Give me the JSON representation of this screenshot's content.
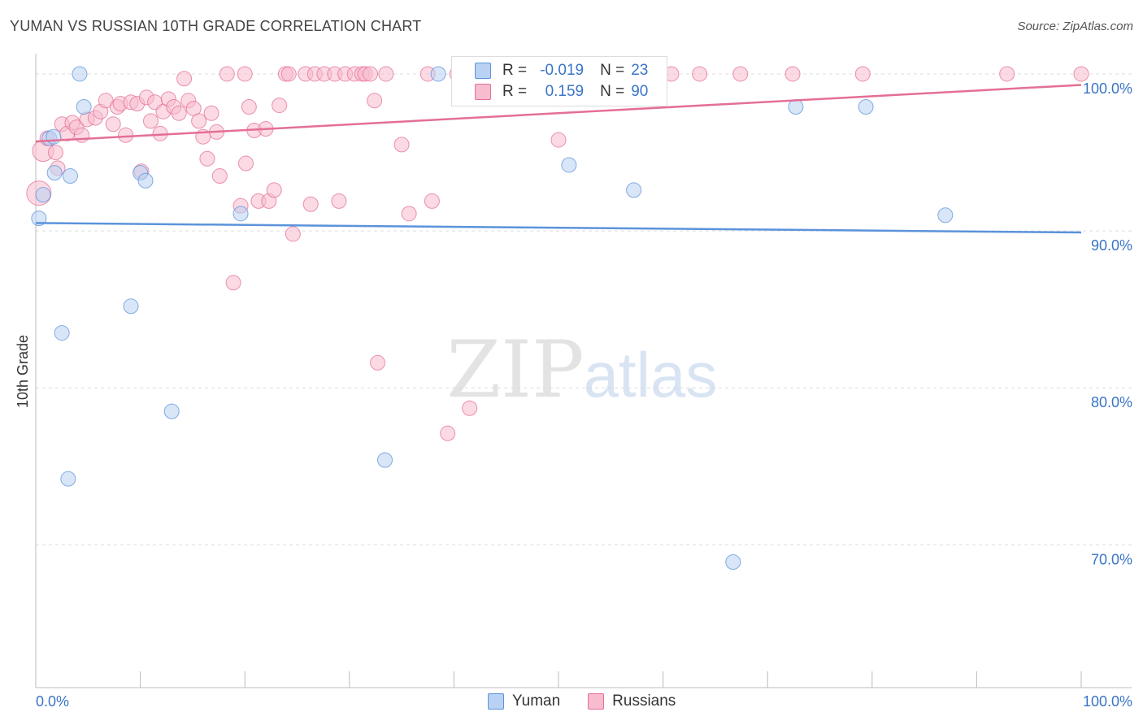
{
  "title": "YUMAN VS RUSSIAN 10TH GRADE CORRELATION CHART",
  "source": "Source: ZipAtlas.com",
  "watermark": {
    "zip": "ZIP",
    "atlas": "atlas"
  },
  "legend": {
    "r_label": "R =",
    "n_label": "N =",
    "rows": [
      {
        "name": "Yuman",
        "r": "-0.019",
        "n": "23",
        "color": "#5b93db",
        "fill": "#b9d1f2"
      },
      {
        "name": "Russians",
        "r": "0.159",
        "n": "90",
        "color": "#e46f95",
        "fill": "#f7bccd"
      }
    ]
  },
  "chart_data": {
    "type": "scatter",
    "title": "YUMAN VS RUSSIAN 10TH GRADE CORRELATION CHART",
    "xlabel": "",
    "ylabel": "10th Grade",
    "xlim": [
      0,
      100
    ],
    "ylim": [
      60.9,
      101.5
    ],
    "x_tick_labels": [
      "0.0%",
      "100.0%"
    ],
    "y_ticks": [
      70,
      80,
      90,
      100
    ],
    "y_tick_labels": [
      "70.0%",
      "80.0%",
      "90.0%",
      "100.0%"
    ],
    "grid": "dashed horizontal",
    "series": [
      {
        "name": "Yuman",
        "color": "#5b93db",
        "fill": "#b9d1f2",
        "trend": {
          "x": [
            0,
            100
          ],
          "y": [
            90.5,
            89.9
          ]
        },
        "points": [
          [
            0.3,
            90.8,
            9
          ],
          [
            0.7,
            92.3,
            9
          ],
          [
            1.3,
            95.9,
            9
          ],
          [
            1.7,
            96.0,
            9
          ],
          [
            1.8,
            93.7,
            9
          ],
          [
            2.5,
            83.5,
            9
          ],
          [
            3.1,
            74.2,
            9
          ],
          [
            3.3,
            93.5,
            9
          ],
          [
            4.2,
            100.0,
            9
          ],
          [
            4.6,
            97.9,
            9
          ],
          [
            9.1,
            85.2,
            9
          ],
          [
            10.0,
            93.7,
            9
          ],
          [
            10.5,
            93.2,
            9
          ],
          [
            13.0,
            78.5,
            9
          ],
          [
            19.6,
            91.1,
            9
          ],
          [
            33.4,
            75.4,
            9
          ],
          [
            38.5,
            100.0,
            9
          ],
          [
            51.0,
            94.2,
            9
          ],
          [
            57.2,
            92.6,
            9
          ],
          [
            66.7,
            68.9,
            9
          ],
          [
            72.7,
            97.9,
            9
          ],
          [
            79.4,
            97.9,
            9
          ],
          [
            87.0,
            91.0,
            9
          ]
        ]
      },
      {
        "name": "Russians",
        "color": "#e46f95",
        "fill": "#f7bccd",
        "trend": {
          "x": [
            0,
            100
          ],
          "y": [
            95.7,
            99.3
          ]
        },
        "points": [
          [
            0.3,
            92.4,
            15
          ],
          [
            0.7,
            95.1,
            13
          ],
          [
            1.1,
            95.9,
            9
          ],
          [
            1.9,
            95.0,
            9
          ],
          [
            2.1,
            94.0,
            9
          ],
          [
            2.5,
            96.8,
            9
          ],
          [
            3.0,
            96.2,
            9
          ],
          [
            3.5,
            96.9,
            9
          ],
          [
            3.9,
            96.6,
            9
          ],
          [
            4.4,
            96.1,
            9
          ],
          [
            4.9,
            97.1,
            9
          ],
          [
            5.7,
            97.2,
            9
          ],
          [
            6.2,
            97.6,
            9
          ],
          [
            6.7,
            98.3,
            9
          ],
          [
            7.4,
            96.8,
            9
          ],
          [
            7.8,
            97.9,
            9
          ],
          [
            8.1,
            98.1,
            9
          ],
          [
            8.6,
            96.1,
            9
          ],
          [
            9.1,
            98.2,
            9
          ],
          [
            9.7,
            98.1,
            9
          ],
          [
            10.1,
            93.8,
            9
          ],
          [
            10.6,
            98.5,
            9
          ],
          [
            11.0,
            97.0,
            9
          ],
          [
            11.4,
            98.2,
            9
          ],
          [
            11.9,
            96.2,
            9
          ],
          [
            12.2,
            97.6,
            9
          ],
          [
            12.7,
            98.4,
            9
          ],
          [
            13.2,
            97.9,
            9
          ],
          [
            13.7,
            97.5,
            9
          ],
          [
            14.2,
            99.7,
            9
          ],
          [
            14.6,
            98.3,
            9
          ],
          [
            15.1,
            97.8,
            9
          ],
          [
            15.6,
            97.0,
            9
          ],
          [
            16.0,
            96.0,
            9
          ],
          [
            16.4,
            94.6,
            9
          ],
          [
            16.8,
            97.5,
            9
          ],
          [
            17.3,
            96.3,
            9
          ],
          [
            17.6,
            93.5,
            9
          ],
          [
            18.3,
            100.0,
            9
          ],
          [
            18.9,
            86.7,
            9
          ],
          [
            19.6,
            91.6,
            9
          ],
          [
            20.1,
            94.3,
            9
          ],
          [
            20.4,
            97.9,
            9
          ],
          [
            20.9,
            96.4,
            9
          ],
          [
            21.3,
            91.9,
            9
          ],
          [
            22.0,
            96.5,
            9
          ],
          [
            22.3,
            91.9,
            9
          ],
          [
            22.8,
            92.6,
            9
          ],
          [
            23.3,
            98.0,
            9
          ],
          [
            23.9,
            100.0,
            9
          ],
          [
            24.2,
            100.0,
            9
          ],
          [
            24.6,
            89.8,
            9
          ],
          [
            25.8,
            100.0,
            9
          ],
          [
            26.3,
            91.7,
            9
          ],
          [
            26.7,
            100.0,
            9
          ],
          [
            27.6,
            100.0,
            9
          ],
          [
            28.6,
            100.0,
            9
          ],
          [
            29.0,
            91.9,
            9
          ],
          [
            29.6,
            100.0,
            9
          ],
          [
            30.5,
            100.0,
            9
          ],
          [
            31.2,
            100.0,
            9
          ],
          [
            31.5,
            100.0,
            9
          ],
          [
            32.0,
            100.0,
            9
          ],
          [
            32.4,
            98.3,
            9
          ],
          [
            32.7,
            81.6,
            9
          ],
          [
            33.5,
            100.0,
            9
          ],
          [
            35.0,
            95.5,
            9
          ],
          [
            35.7,
            91.1,
            9
          ],
          [
            37.5,
            100.0,
            9
          ],
          [
            37.9,
            91.9,
            9
          ],
          [
            39.4,
            77.1,
            9
          ],
          [
            40.3,
            100.0,
            9
          ],
          [
            41.5,
            78.7,
            9
          ],
          [
            43.8,
            100.0,
            9
          ],
          [
            47.0,
            100.0,
            9
          ],
          [
            47.9,
            100.0,
            9
          ],
          [
            49.6,
            100.0,
            9
          ],
          [
            50.0,
            95.8,
            9
          ],
          [
            52.4,
            100.0,
            9
          ],
          [
            55.8,
            100.0,
            9
          ],
          [
            57.7,
            100.0,
            9
          ],
          [
            59.5,
            100.0,
            9
          ],
          [
            60.8,
            100.0,
            9
          ],
          [
            63.5,
            100.0,
            9
          ],
          [
            67.4,
            100.0,
            9
          ],
          [
            72.4,
            100.0,
            9
          ],
          [
            79.1,
            100.0,
            9
          ],
          [
            92.9,
            100.0,
            9
          ],
          [
            100.0,
            100.0,
            9
          ],
          [
            20.0,
            100.0,
            9
          ]
        ]
      }
    ]
  }
}
